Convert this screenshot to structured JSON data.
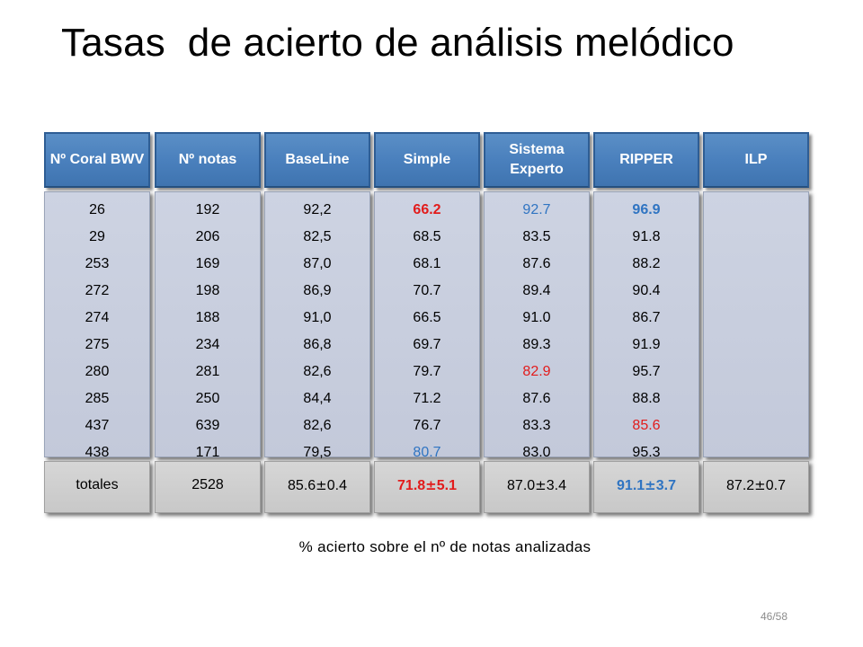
{
  "title": "Tasas  de acierto de análisis melódico",
  "caption": "% acierto sobre el nº de notas analizadas",
  "page_number": "46/58",
  "colors": {
    "header_blue": "#4a80bd",
    "cell_lavender": "#c8cddd",
    "total_gray": "#cfcfcf",
    "highlight_red": "#e21b1b",
    "highlight_blue": "#2f74c2"
  },
  "columns": [
    {
      "header": "Nº Coral BWV",
      "total": "totales",
      "values": [
        "26",
        "29",
        "253",
        "272",
        "274",
        "275",
        "280",
        "285",
        "437",
        "438"
      ]
    },
    {
      "header": "Nº notas",
      "total": "2528",
      "values": [
        "192",
        "206",
        "169",
        "198",
        "188",
        "234",
        "281",
        "250",
        "639",
        "171"
      ]
    },
    {
      "header": "BaseLine",
      "total_value": "85.6",
      "total_pm": "±",
      "total_err": "0.4",
      "values": [
        "92,2",
        "82,5",
        "87,0",
        "86,9",
        "91,0",
        "86,8",
        "82,6",
        "84,4",
        "82,6",
        "79,5"
      ]
    },
    {
      "header": "Simple",
      "total_value": "71.8",
      "total_pm": "±",
      "total_err": "5.1",
      "values": [
        "66.2",
        "68.5",
        "68.1",
        "70.7",
        "66.5",
        "69.7",
        "79.7",
        "71.2",
        "76.7",
        "80.7"
      ]
    },
    {
      "header": "Sistema Experto",
      "total_value": "87.0",
      "total_pm": "±",
      "total_err": "3.4",
      "values": [
        "92.7",
        "83.5",
        "87.6",
        "89.4",
        "91.0",
        "89.3",
        "82.9",
        "87.6",
        "83.3",
        "83.0"
      ]
    },
    {
      "header": "RIPPER",
      "total_value": "91.1",
      "total_pm": "±",
      "total_err": "3.7",
      "values": [
        "96.9",
        "91.8",
        "88.2",
        "90.4",
        "86.7",
        "91.9",
        "95.7",
        "88.8",
        "85.6",
        "95.3"
      ]
    },
    {
      "header": "ILP",
      "total_value": "87.2",
      "total_pm": "±",
      "total_err": "0.7",
      "values": []
    }
  ]
}
